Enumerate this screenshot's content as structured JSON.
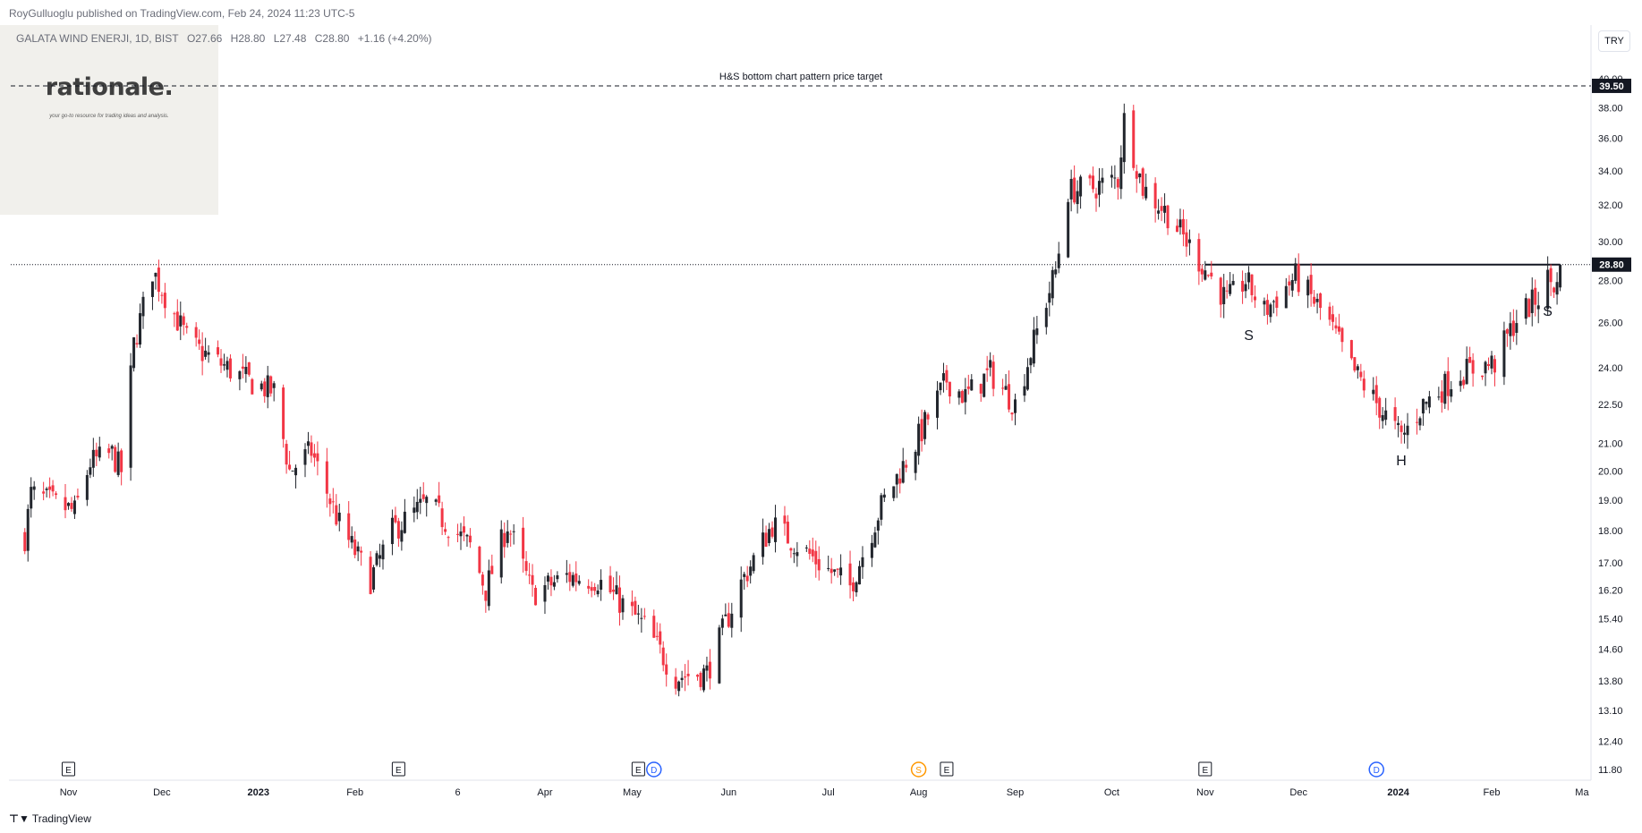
{
  "header": {
    "publisher": "RoyGulluoglu published on TradingView.com, Feb 24, 2024 11:23 UTC-5",
    "symbol": "GALATA WIND ENERJI, 1D, BIST",
    "open": "O27.66",
    "high": "H28.80",
    "low": "L27.48",
    "close": "C28.80",
    "change": "+1.16 (+4.20%)"
  },
  "logo": {
    "word": "rationale.",
    "tagline": "your go-to resource for trading ideas and analysis."
  },
  "currency_button": "TRY",
  "footer": {
    "brand": "TradingView"
  },
  "colors": {
    "up": "#22262d",
    "down": "#f23645",
    "background": "#ffffff",
    "grid_text": "#131722"
  },
  "chart_data": {
    "type": "candlestick",
    "scale": "log",
    "y_ticks": [
      11.8,
      12.4,
      13.1,
      13.8,
      14.6,
      15.4,
      16.2,
      17.0,
      18.0,
      19.0,
      20.0,
      21.0,
      22.5,
      24.0,
      26.0,
      28.0,
      30.0,
      32.0,
      34.0,
      36.0,
      38.0,
      40.0
    ],
    "x_ticks": [
      "Nov",
      "Dec",
      "2023",
      "Feb",
      "6",
      "Apr",
      "May",
      "Jun",
      "Jul",
      "Aug",
      "Sep",
      "Oct",
      "Nov",
      "Dec",
      "2024",
      "Feb",
      "Ma"
    ],
    "last_price": 28.8,
    "target_price": 39.5,
    "target_label": "H&S bottom chart pattern price target",
    "neckline": 28.8,
    "pattern_labels": [
      "S",
      "H",
      "S"
    ],
    "events": [
      {
        "type": "E",
        "date": "Nov"
      },
      {
        "type": "E",
        "date": "Feb"
      },
      {
        "type": "E",
        "date": "May"
      },
      {
        "type": "D",
        "date": "May"
      },
      {
        "type": "S",
        "date": "Aug"
      },
      {
        "type": "E",
        "date": "Aug"
      },
      {
        "type": "E",
        "date": "Nov"
      },
      {
        "type": "D",
        "date": "2024"
      }
    ],
    "price_path_anchors": [
      {
        "date": "2022-10-18",
        "price": 17.8
      },
      {
        "date": "2022-10-20",
        "price": 19.2
      },
      {
        "date": "2022-11-03",
        "price": 18.6
      },
      {
        "date": "2022-11-08",
        "price": 20.3
      },
      {
        "date": "2022-11-15",
        "price": 20.6
      },
      {
        "date": "2022-11-18",
        "price": 20.0
      },
      {
        "date": "2022-11-22",
        "price": 25.0
      },
      {
        "date": "2022-11-28",
        "price": 28.5
      },
      {
        "date": "2022-12-10",
        "price": 25.0
      },
      {
        "date": "2022-12-28",
        "price": 23.5
      },
      {
        "date": "2023-01-06",
        "price": 23.0
      },
      {
        "date": "2023-01-11",
        "price": 20.0
      },
      {
        "date": "2023-01-18",
        "price": 20.7
      },
      {
        "date": "2023-01-27",
        "price": 18.2
      },
      {
        "date": "2023-02-06",
        "price": 16.5
      },
      {
        "date": "2023-02-13",
        "price": 18.0
      },
      {
        "date": "2023-02-24",
        "price": 18.9
      },
      {
        "date": "2023-03-10",
        "price": 17.5
      },
      {
        "date": "2023-03-15",
        "price": 16.2
      },
      {
        "date": "2023-03-22",
        "price": 18.2
      },
      {
        "date": "2023-03-30",
        "price": 16.1
      },
      {
        "date": "2023-04-10",
        "price": 16.6
      },
      {
        "date": "2023-04-20",
        "price": 16.5
      },
      {
        "date": "2023-05-05",
        "price": 15.2
      },
      {
        "date": "2023-05-15",
        "price": 13.9
      },
      {
        "date": "2023-05-25",
        "price": 14.0
      },
      {
        "date": "2023-06-05",
        "price": 16.4
      },
      {
        "date": "2023-06-15",
        "price": 18.2
      },
      {
        "date": "2023-06-30",
        "price": 17.0
      },
      {
        "date": "2023-07-10",
        "price": 16.3
      },
      {
        "date": "2023-07-20",
        "price": 18.8
      },
      {
        "date": "2023-07-31",
        "price": 21.0
      },
      {
        "date": "2023-08-10",
        "price": 23.5
      },
      {
        "date": "2023-08-16",
        "price": 22.8
      },
      {
        "date": "2023-08-24",
        "price": 23.8
      },
      {
        "date": "2023-09-01",
        "price": 22.5
      },
      {
        "date": "2023-09-08",
        "price": 25.6
      },
      {
        "date": "2023-09-14",
        "price": 28.5
      },
      {
        "date": "2023-09-18",
        "price": 32.8
      },
      {
        "date": "2023-09-26",
        "price": 33.0
      },
      {
        "date": "2023-10-04",
        "price": 33.5
      },
      {
        "date": "2023-10-06",
        "price": 37.2
      },
      {
        "date": "2023-10-12",
        "price": 33.0
      },
      {
        "date": "2023-10-20",
        "price": 31.5
      },
      {
        "date": "2023-10-31",
        "price": 28.8
      },
      {
        "date": "2023-11-08",
        "price": 27.0
      },
      {
        "date": "2023-11-14",
        "price": 28.0
      },
      {
        "date": "2023-11-20",
        "price": 26.5
      },
      {
        "date": "2023-11-30",
        "price": 28.2
      },
      {
        "date": "2023-12-10",
        "price": 26.2
      },
      {
        "date": "2023-12-18",
        "price": 24.0
      },
      {
        "date": "2023-12-28",
        "price": 22.2
      },
      {
        "date": "2024-01-03",
        "price": 21.2
      },
      {
        "date": "2024-01-10",
        "price": 22.5
      },
      {
        "date": "2024-01-22",
        "price": 23.8
      },
      {
        "date": "2024-02-02",
        "price": 24.2
      },
      {
        "date": "2024-02-09",
        "price": 26.2
      },
      {
        "date": "2024-02-16",
        "price": 27.2
      },
      {
        "date": "2024-02-19",
        "price": 28.1
      },
      {
        "date": "2024-02-22",
        "price": 27.66
      },
      {
        "date": "2024-02-23",
        "price": 28.8
      }
    ]
  }
}
